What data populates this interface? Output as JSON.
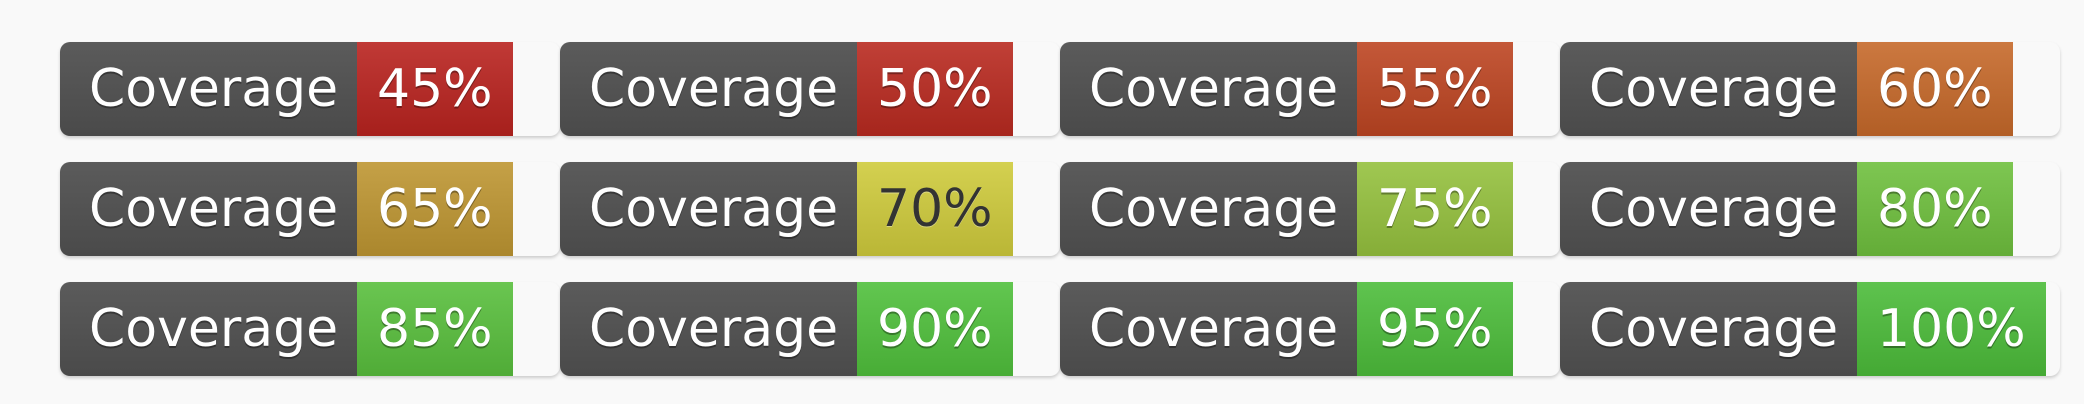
{
  "badges": [
    {
      "label": "Coverage",
      "value": "45%",
      "color": "#b9231f"
    },
    {
      "label": "Coverage",
      "value": "50%",
      "color": "#b92a20"
    },
    {
      "label": "Coverage",
      "value": "55%",
      "color": "#bd4522"
    },
    {
      "label": "Coverage",
      "value": "60%",
      "color": "#c6692a"
    },
    {
      "label": "Coverage",
      "value": "65%",
      "color": "#be9632"
    },
    {
      "label": "Coverage",
      "value": "70%",
      "color": "#cfcb3c",
      "dark_text": true
    },
    {
      "label": "Coverage",
      "value": "75%",
      "color": "#95c13e"
    },
    {
      "label": "Coverage",
      "value": "80%",
      "color": "#6fc03e"
    },
    {
      "label": "Coverage",
      "value": "85%",
      "color": "#59bf3d"
    },
    {
      "label": "Coverage",
      "value": "90%",
      "color": "#50c03c"
    },
    {
      "label": "Coverage",
      "value": "95%",
      "color": "#4dbd3b"
    },
    {
      "label": "Coverage",
      "value": "100%",
      "color": "#4cbc3a"
    }
  ]
}
